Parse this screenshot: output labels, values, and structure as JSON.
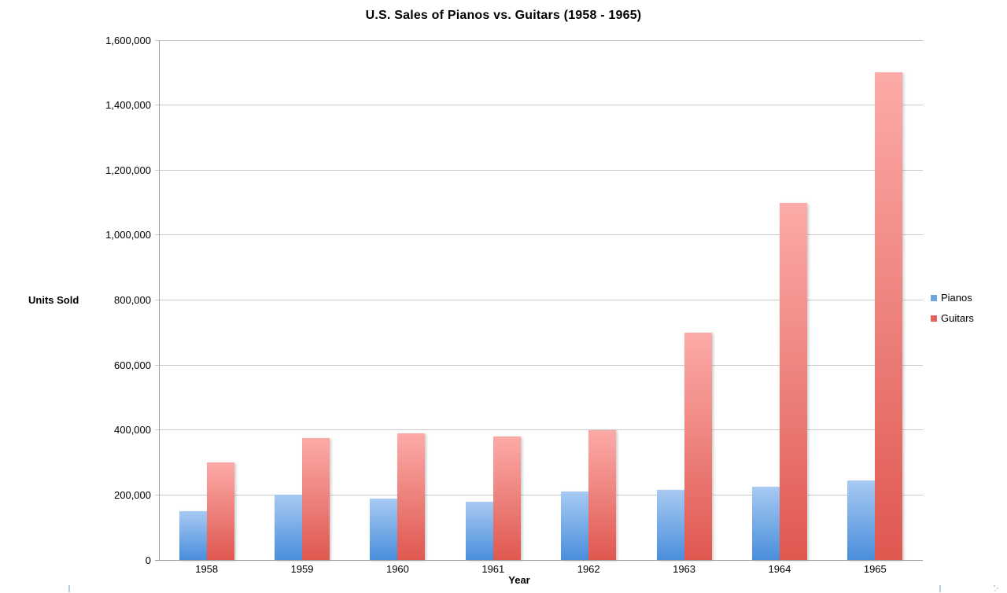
{
  "header": {
    "title": "U.S. Sales of Pianos vs. Guitars (1958 - 1965)"
  },
  "chart_data": {
    "type": "bar",
    "title": "U.S. Sales of Pianos vs. Guitars (1958 - 1965)",
    "categories": [
      "1958",
      "1959",
      "1960",
      "1961",
      "1962",
      "1963",
      "1964",
      "1965"
    ],
    "series": [
      {
        "name": "Pianos",
        "values": [
          150000,
          200000,
          190000,
          178000,
          210000,
          215000,
          225000,
          245000
        ],
        "color_top": "#A7CAF2",
        "color_bottom": "#4A8EDC",
        "legend_color": "#6FA5DE"
      },
      {
        "name": "Guitars",
        "values": [
          300000,
          375000,
          390000,
          380000,
          400000,
          700000,
          1100000,
          1500000
        ],
        "color_top": "#FCABA8",
        "color_bottom": "#DF5850",
        "legend_color": "#E2625C"
      }
    ],
    "xlabel": "Year",
    "ylabel": "Units Sold",
    "ylim": [
      0,
      1600000
    ],
    "yticks": [
      0,
      200000,
      400000,
      600000,
      800000,
      1000000,
      1200000,
      1400000,
      1600000
    ],
    "ytick_labels": [
      "0",
      "200,000",
      "400,000",
      "600,000",
      "800,000",
      "1,000,000",
      "1,200,000",
      "1,400,000",
      "1,600,000"
    ],
    "grid": true,
    "legend_position": "right"
  },
  "colors": {
    "gridline": "#C9C9C9",
    "axis": "#9B9B9B",
    "text": "#000000"
  }
}
